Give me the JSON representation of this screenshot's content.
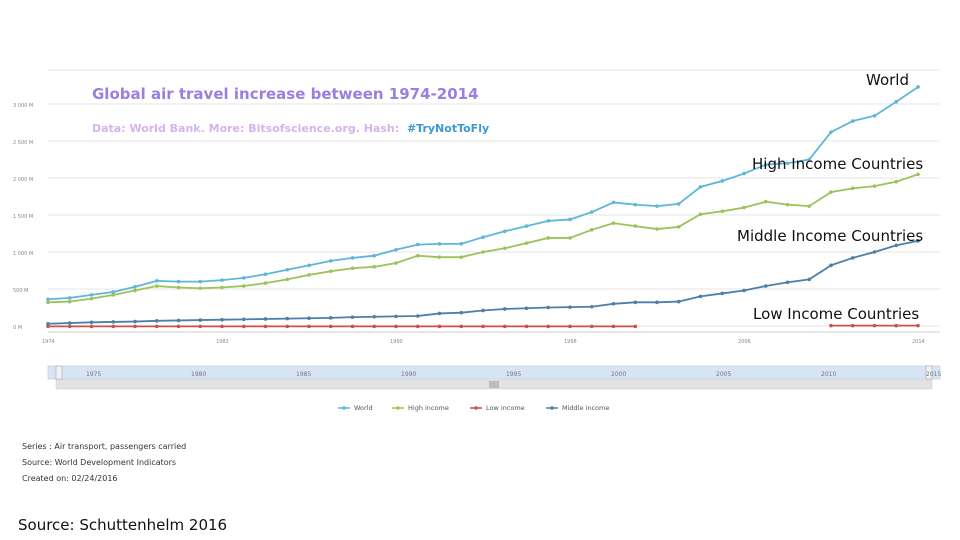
{
  "chart_data": {
    "type": "line",
    "title": "Global air travel increase between 1974-2014",
    "subtitle_prefix": "Data: World Bank. More: Bitsofscience.org. Hash:",
    "hashtag": "#TryNotToFly",
    "x": [
      1974,
      1975,
      1976,
      1977,
      1978,
      1979,
      1980,
      1981,
      1982,
      1983,
      1984,
      1985,
      1986,
      1987,
      1988,
      1989,
      1990,
      1991,
      1992,
      1993,
      1994,
      1995,
      1996,
      1997,
      1998,
      1999,
      2000,
      2001,
      2002,
      2003,
      2004,
      2005,
      2006,
      2007,
      2008,
      2009,
      2010,
      2011,
      2012,
      2013,
      2014
    ],
    "ylim": [
      0,
      3000
    ],
    "y_ticks": [
      "3 000 M",
      "2 500 M",
      "2 000 M",
      "1 500 M",
      "1 000 M",
      "500 M",
      "0 M"
    ],
    "x_tick_labels": [
      "1974",
      "1982",
      "1990",
      "1998",
      "2006",
      "2014"
    ],
    "navigator_labels": [
      "1975",
      "1980",
      "1985",
      "1990",
      "1995",
      "2000",
      "2005",
      "2010",
      "2015"
    ],
    "series": [
      {
        "name": "World",
        "color": "#5fb6d6",
        "values": [
          360,
          380,
          420,
          460,
          530,
          610,
          600,
          600,
          620,
          650,
          700,
          760,
          820,
          880,
          920,
          950,
          1030,
          1100,
          1110,
          1110,
          1200,
          1280,
          1350,
          1420,
          1440,
          1540,
          1670,
          1640,
          1620,
          1650,
          1880,
          1960,
          2060,
          2180,
          2200,
          2250,
          2620,
          2770,
          2840,
          3030,
          3230
        ]
      },
      {
        "name": "High income",
        "color": "#9bc35a",
        "values": [
          320,
          330,
          370,
          420,
          480,
          540,
          520,
          510,
          520,
          540,
          580,
          630,
          690,
          740,
          780,
          800,
          850,
          950,
          930,
          930,
          1000,
          1050,
          1120,
          1190,
          1190,
          1300,
          1390,
          1350,
          1310,
          1340,
          1510,
          1550,
          1600,
          1680,
          1640,
          1620,
          1810,
          1860,
          1890,
          1950,
          2050
        ]
      },
      {
        "name": "Low income",
        "color": "#c9504b",
        "values": [
          -5,
          -5,
          -5,
          -5,
          -5,
          -5,
          -5,
          -5,
          -5,
          -5,
          -5,
          -5,
          -5,
          -5,
          -5,
          -5,
          -5,
          -5,
          -5,
          -5,
          -5,
          -5,
          -5,
          -5,
          -5,
          -5,
          -5,
          -5,
          null,
          null,
          null,
          null,
          null,
          null,
          null,
          null,
          5,
          5,
          5,
          5,
          5
        ]
      },
      {
        "name": "Middle income",
        "color": "#4e7fa8",
        "values": [
          30,
          40,
          50,
          55,
          60,
          70,
          75,
          80,
          85,
          90,
          95,
          100,
          105,
          110,
          120,
          125,
          130,
          135,
          170,
          180,
          210,
          230,
          240,
          250,
          255,
          260,
          300,
          320,
          320,
          330,
          400,
          440,
          480,
          540,
          590,
          630,
          820,
          920,
          1000,
          1090,
          1150
        ]
      }
    ]
  },
  "overlay_labels": {
    "world": "World",
    "high": "High Income Countries",
    "middle": "Middle Income Countries",
    "low": "Low Income Countries"
  },
  "meta": {
    "series": "Series : Air transport, passengers carried",
    "source": "Source: World Development Indicators",
    "created": "Created on: 02/24/2016"
  },
  "footer": {
    "source": "Source: Schuttenhelm 2016"
  }
}
